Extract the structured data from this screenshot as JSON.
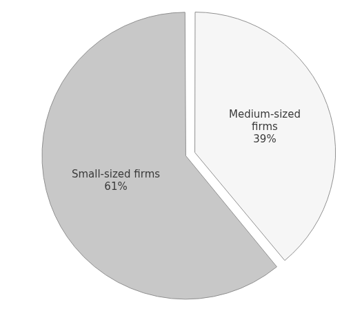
{
  "chart_data": {
    "type": "pie",
    "categories": [
      "Medium-sized firms",
      "Small-sized firms"
    ],
    "values": [
      39,
      61
    ],
    "value_labels": [
      "39%",
      "61%"
    ],
    "colors": [
      "#f6f6f6",
      "#c8c8c8"
    ],
    "data_labels": true
  }
}
